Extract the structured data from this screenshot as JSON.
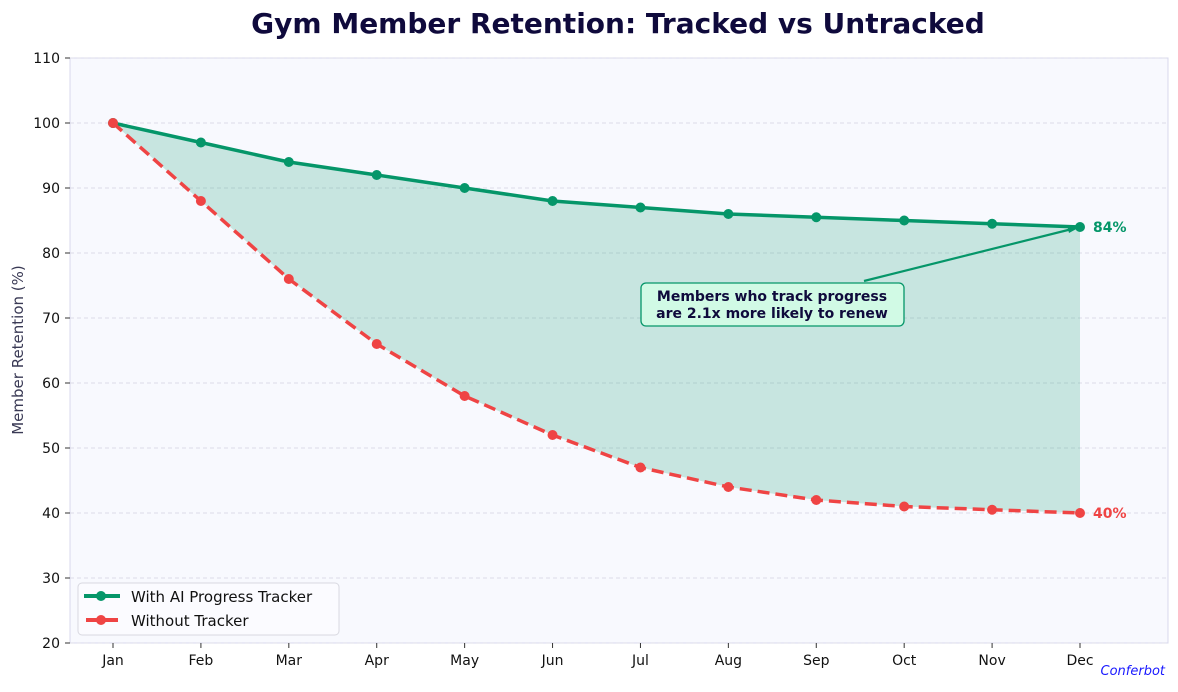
{
  "chart_data": {
    "type": "line",
    "title": "Gym Member Retention: Tracked vs Untracked",
    "xlabel": "",
    "ylabel": "Member Retention (%)",
    "categories": [
      "Jan",
      "Feb",
      "Mar",
      "Apr",
      "May",
      "Jun",
      "Jul",
      "Aug",
      "Sep",
      "Oct",
      "Nov",
      "Dec"
    ],
    "ylim": [
      20,
      110
    ],
    "yticks": [
      20,
      30,
      40,
      50,
      60,
      70,
      80,
      90,
      100,
      110
    ],
    "grid": true,
    "legend_placement": "lower-left",
    "series": [
      {
        "name": "With AI Progress Tracker",
        "color": "#059669",
        "style": "solid",
        "values": [
          100,
          97,
          94,
          92,
          90,
          88,
          87,
          86,
          85.5,
          85,
          84.5,
          84
        ],
        "end_label": "84%"
      },
      {
        "name": "Without Tracker",
        "color": "#ef4444",
        "style": "dashed",
        "values": [
          100,
          88,
          76,
          66,
          58,
          52,
          47,
          44,
          42,
          41,
          40.5,
          40
        ],
        "end_label": "40%"
      }
    ],
    "fill_between": {
      "color": "#059669"
    },
    "annotation": {
      "text_lines": [
        "Members who track progress",
        "are 2.1x more likely to renew"
      ],
      "points_to": {
        "x": "Dec",
        "y": 84
      }
    },
    "watermark": "Conferbot"
  }
}
